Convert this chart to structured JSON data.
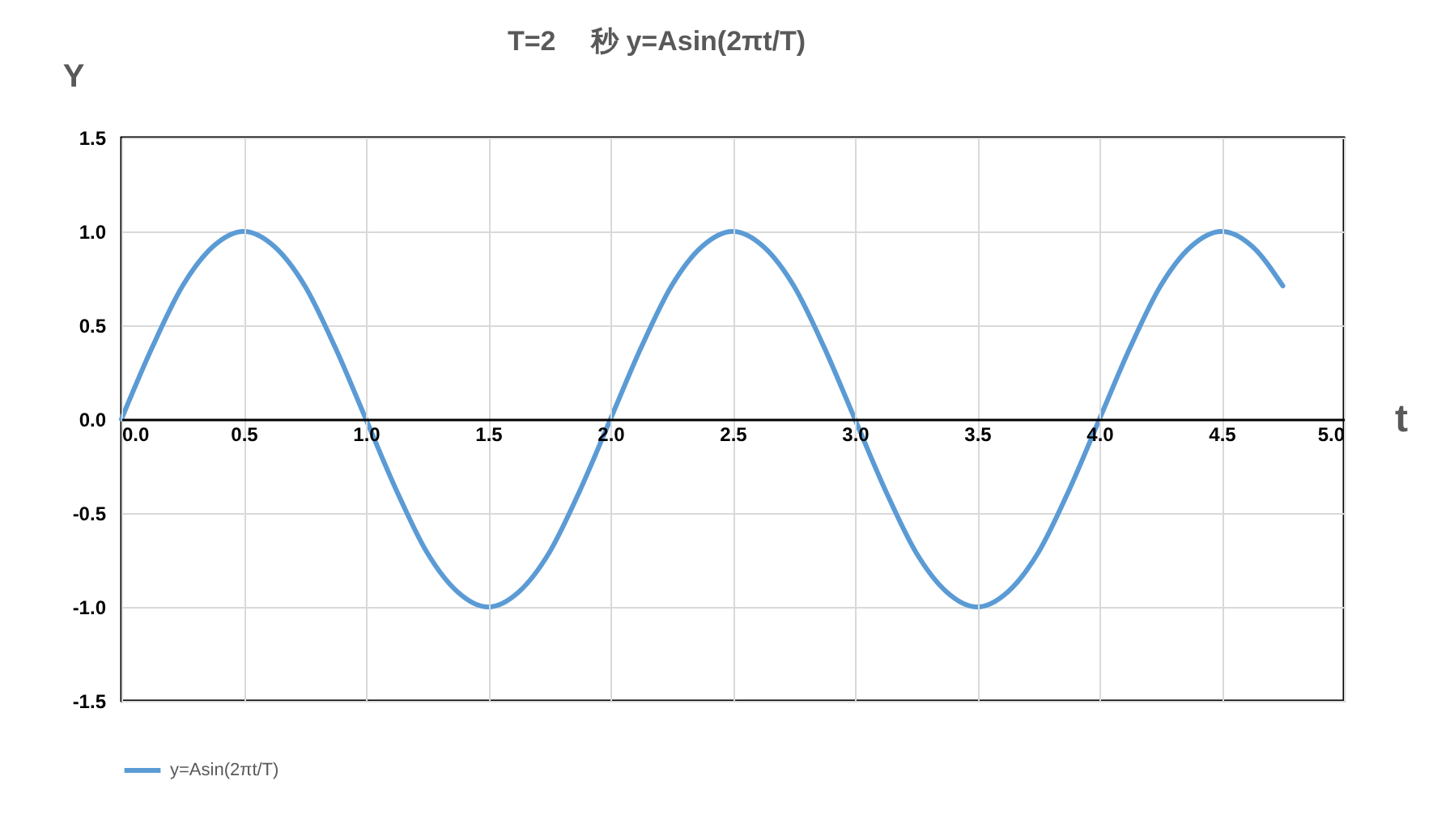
{
  "chart_data": {
    "type": "line",
    "title": "T=2　 秒 y=Asin(2πt/T)",
    "xlabel": "t",
    "ylabel": "Y",
    "x": [
      0,
      0.125,
      0.25,
      0.375,
      0.5,
      0.625,
      0.75,
      0.875,
      1,
      1.125,
      1.25,
      1.375,
      1.5,
      1.625,
      1.75,
      1.875,
      2,
      2.125,
      2.25,
      2.375,
      2.5,
      2.625,
      2.75,
      2.875,
      3,
      3.125,
      3.25,
      3.375,
      3.5,
      3.625,
      3.75,
      3.875,
      4,
      4.125,
      4.25,
      4.375,
      4.5,
      4.625,
      4.75
    ],
    "series": [
      {
        "name": "y=Asin(2πt/T)",
        "color": "#5b9bd5",
        "values": [
          0,
          0.38,
          0.71,
          0.92,
          1,
          0.92,
          0.71,
          0.38,
          0,
          -0.38,
          -0.71,
          -0.92,
          -1,
          -0.92,
          -0.71,
          -0.38,
          0,
          0.38,
          0.71,
          0.92,
          1,
          0.92,
          0.71,
          0.38,
          0,
          -0.38,
          -0.71,
          -0.92,
          -1,
          -0.92,
          -0.71,
          -0.38,
          0,
          0.38,
          0.71,
          0.92,
          1,
          0.92,
          0.71
        ]
      }
    ],
    "xlim": [
      0,
      5
    ],
    "ylim": [
      -1.5,
      1.5
    ],
    "xticks": [
      {
        "value": 0,
        "label": "0.0"
      },
      {
        "value": 0.5,
        "label": "0.5"
      },
      {
        "value": 1,
        "label": "1.0"
      },
      {
        "value": 1.5,
        "label": "1.5"
      },
      {
        "value": 2,
        "label": "2.0"
      },
      {
        "value": 2.5,
        "label": "2.5"
      },
      {
        "value": 3,
        "label": "3.0"
      },
      {
        "value": 3.5,
        "label": "3.5"
      },
      {
        "value": 4,
        "label": "4.0"
      },
      {
        "value": 4.5,
        "label": "4.5"
      },
      {
        "value": 5,
        "label": "5.0"
      }
    ],
    "yticks": [
      {
        "value": -1.5,
        "label": "-1.5"
      },
      {
        "value": -1,
        "label": "-1.0"
      },
      {
        "value": -0.5,
        "label": "-0.5"
      },
      {
        "value": 0,
        "label": "0.0"
      },
      {
        "value": 0.5,
        "label": "0.5"
      },
      {
        "value": 1,
        "label": "1.0"
      },
      {
        "value": 1.5,
        "label": "1.5"
      }
    ],
    "grid": true,
    "legend": "bottom"
  }
}
